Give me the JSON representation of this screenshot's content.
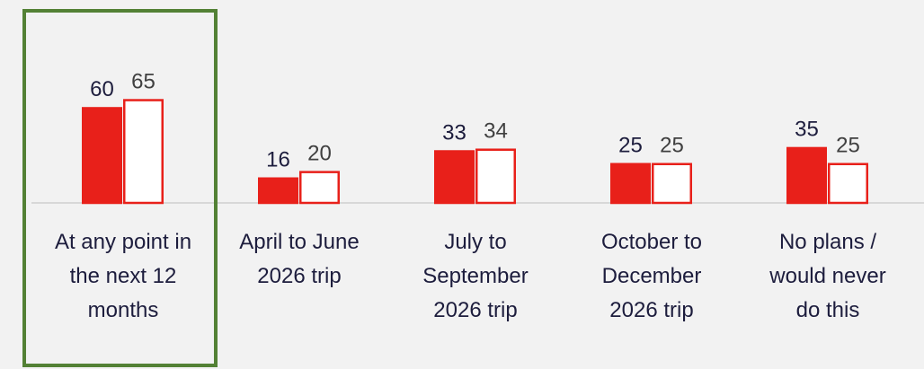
{
  "chart_data": {
    "type": "bar",
    "categories": [
      "At any point in the next 12 months",
      "April to June 2026 trip",
      "July to September 2026 trip",
      "October to December 2026 trip",
      "No plans / would never do this"
    ],
    "series": [
      {
        "color": "#e8201a",
        "values": [
          60,
          16,
          33,
          25,
          35
        ]
      },
      {
        "color": "#ffffff",
        "values": [
          65,
          20,
          34,
          25,
          25
        ]
      }
    ],
    "ylim": [
      0,
      100
    ]
  }
}
